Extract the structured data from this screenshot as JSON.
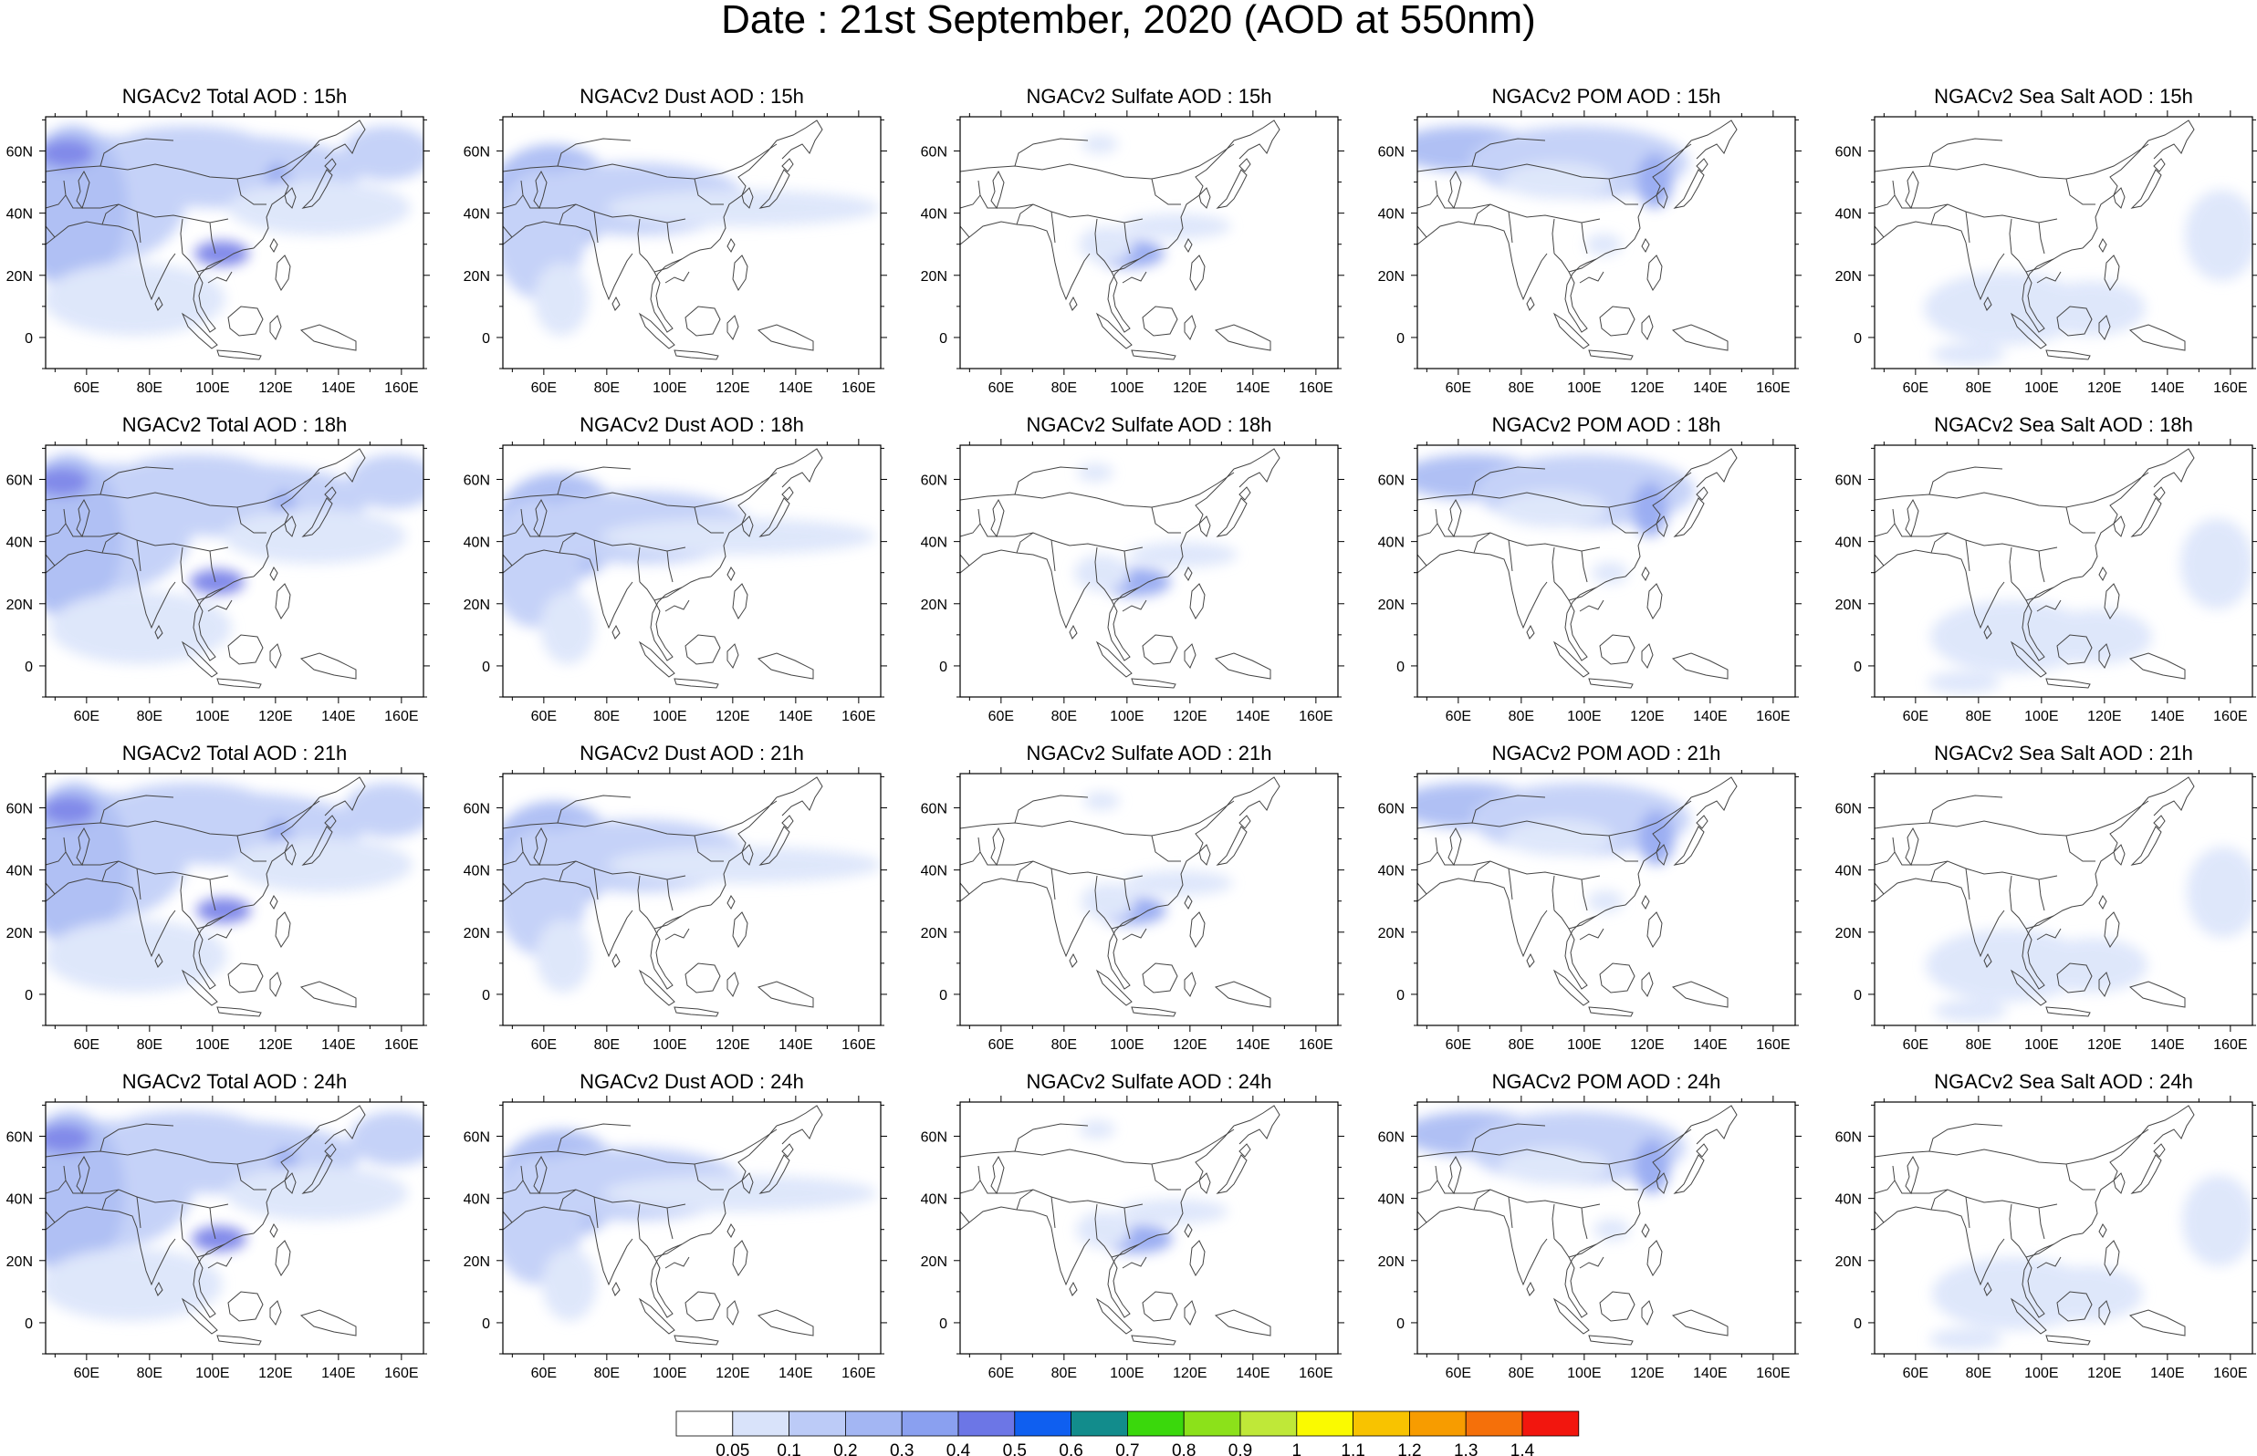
{
  "main_title": "Date : 21st  September, 2020 (AOD at 550nm)",
  "row_titles": [
    [
      "NGACv2 Total AOD : 15h",
      "NGACv2 Dust AOD : 15h",
      "NGACv2 Sulfate AOD : 15h",
      "NGACv2 POM AOD : 15h",
      "NGACv2 Sea Salt AOD : 15h"
    ],
    [
      "NGACv2 Total AOD : 18h",
      "NGACv2 Dust AOD : 18h",
      "NGACv2 Sulfate AOD : 18h",
      "NGACv2 POM AOD : 18h",
      "NGACv2 Sea Salt AOD : 18h"
    ],
    [
      "NGACv2 Total AOD : 21h",
      "NGACv2 Dust AOD : 21h",
      "NGACv2 Sulfate AOD : 21h",
      "NGACv2 POM AOD : 21h",
      "NGACv2 Sea Salt AOD : 21h"
    ],
    [
      "NGACv2 Total AOD : 24h",
      "NGACv2 Dust AOD : 24h",
      "NGACv2 Sulfate AOD : 24h",
      "NGACv2 POM AOD : 24h",
      "NGACv2 Sea Salt  AOD : 24h"
    ]
  ],
  "x_ticks": [
    "60E",
    "80E",
    "100E",
    "120E",
    "140E",
    "160E"
  ],
  "y_ticks": [
    "60N",
    "40N",
    "20N",
    "0"
  ],
  "map_extent": {
    "lon": [
      47,
      167
    ],
    "lat": [
      -10,
      71
    ]
  },
  "colorbar": {
    "labels": [
      "0.05",
      "0.1",
      "0.2",
      "0.3",
      "0.4",
      "0.5",
      "0.6",
      "0.7",
      "0.8",
      "0.9",
      "1",
      "1.1",
      "1.2",
      "1.3",
      "1.4"
    ],
    "colors": [
      "#ffffff",
      "#d9e3fa",
      "#bccbf7",
      "#a3b6f3",
      "#8aa0f0",
      "#6c76e6",
      "#0f5ff0",
      "#128c8c",
      "#3ad80c",
      "#8ce11a",
      "#bfe838",
      "#fafa00",
      "#f8c300",
      "#f79c00",
      "#f5700a",
      "#f2160e"
    ]
  }
}
